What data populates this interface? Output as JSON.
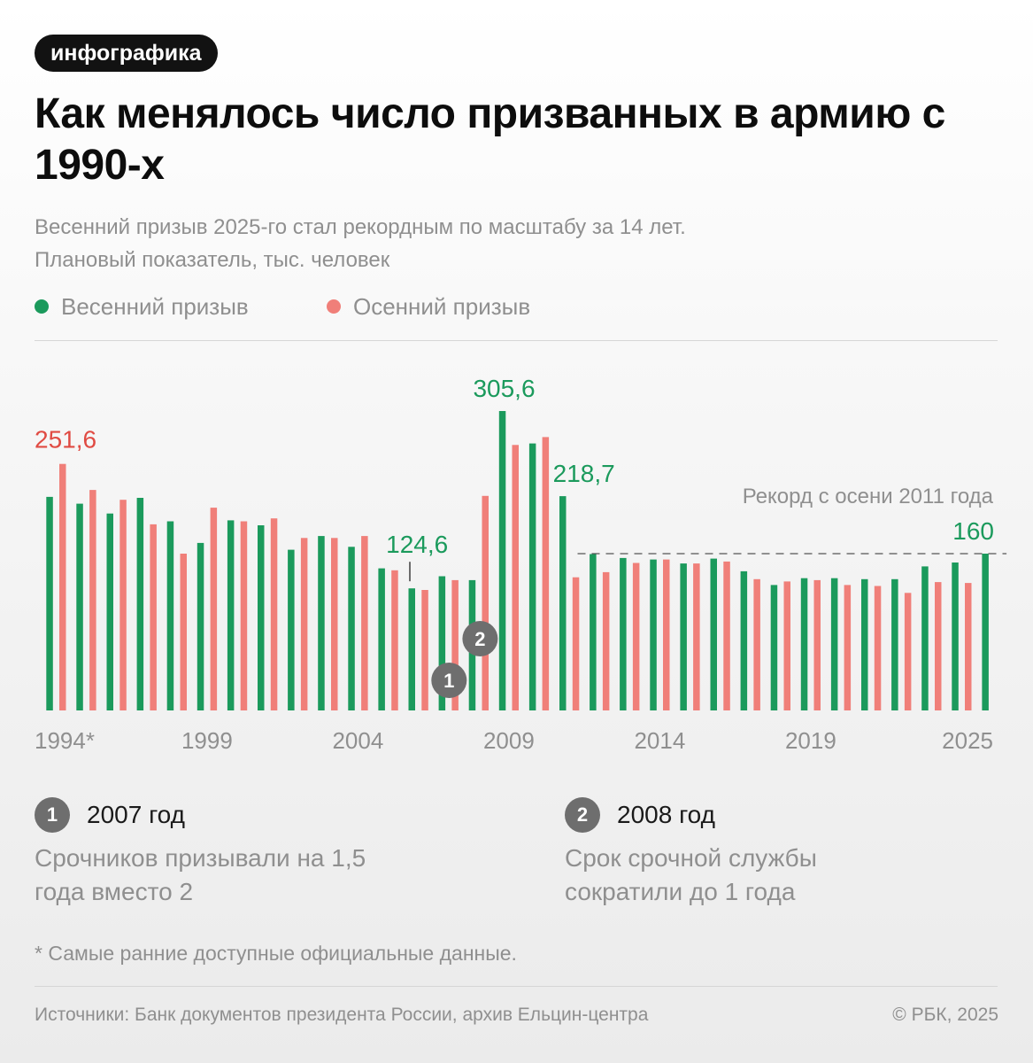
{
  "tag": "инфографика",
  "title": "Как менялось число призванных в армию с 1990-х",
  "subtitle": [
    "Весенний призыв 2025-го стал рекордным по масштабу за 14 лет.",
    "Плановый показатель, тыс. человек"
  ],
  "legend": {
    "spring": "Весенний призыв",
    "autumn": "Осенний призыв"
  },
  "colors": {
    "spring": "#1b9a5c",
    "autumn": "#f07f79",
    "spring_label": "#1b9a5c",
    "autumn_label": "#e04b43",
    "axis_text": "#8f8f8f",
    "badge": "#6e6e6e"
  },
  "chart_data": {
    "type": "bar",
    "title": "Как менялось число призванных в армию с 1990-х",
    "ylabel": "тыс. человек",
    "ylim": [
      0,
      310
    ],
    "grid": false,
    "legend_position": "top-left",
    "categories": [
      "1994",
      "1995",
      "1996",
      "1997",
      "1998",
      "1999",
      "2000",
      "2001",
      "2002",
      "2003",
      "2004",
      "2005",
      "2006",
      "2007",
      "2008",
      "2009",
      "2010",
      "2011",
      "2012",
      "2013",
      "2014",
      "2015",
      "2016",
      "2017",
      "2018",
      "2019",
      "2020",
      "2021",
      "2022",
      "2023",
      "2024",
      "2025"
    ],
    "series": [
      {
        "name": "Весенний призыв",
        "key": "spring",
        "values": [
          218,
          211,
          201,
          217,
          193,
          171,
          194,
          189,
          164,
          178,
          167,
          145,
          124.6,
          137,
          133,
          305.6,
          272.5,
          218.7,
          159.6,
          155.6,
          154.1,
          150,
          155,
          142,
          128,
          135,
          135,
          134,
          134,
          147,
          151,
          160
        ]
      },
      {
        "name": "Осенний призыв",
        "key": "autumn",
        "values": [
          251.6,
          225,
          215,
          190,
          160,
          207,
          193,
          196,
          176,
          176,
          178,
          143,
          123,
          133,
          219,
          271,
          279,
          135.85,
          141.15,
          150.5,
          154.1,
          150,
          152,
          134,
          131.6,
          133,
          128,
          127,
          120,
          131,
          130.1,
          null
        ]
      }
    ],
    "x_tick_labels": [
      {
        "category": "1994",
        "label": "1994*"
      },
      {
        "category": "1999",
        "label": "1999"
      },
      {
        "category": "2004",
        "label": "2004"
      },
      {
        "category": "2009",
        "label": "2009"
      },
      {
        "category": "2014",
        "label": "2014"
      },
      {
        "category": "2019",
        "label": "2019"
      },
      {
        "category": "2025",
        "label": "2025"
      }
    ],
    "data_labels": [
      {
        "category": "1994",
        "series": "autumn",
        "text": "251,6"
      },
      {
        "category": "2006",
        "series": "spring",
        "text": "124,6"
      },
      {
        "category": "2009",
        "series": "spring",
        "text": "305,6"
      },
      {
        "category": "2011",
        "series": "spring",
        "text": "218,7"
      },
      {
        "category": "2025",
        "series": "spring",
        "text": "160"
      }
    ],
    "reference_line": {
      "value": 160,
      "from_category": "2011",
      "to_category": "2025",
      "label": "Рекорд с осени 2011 года"
    },
    "markers": [
      {
        "id": "1",
        "category": "2007"
      },
      {
        "id": "2",
        "category": "2008"
      }
    ]
  },
  "notes": [
    {
      "badge": "1",
      "title": "2007 год",
      "text": "Срочников призывали на 1,5 года вместо 2"
    },
    {
      "badge": "2",
      "title": "2008 год",
      "text": "Срок срочной службы сократили до 1 года"
    }
  ],
  "footnote": "* Самые ранние доступные официальные данные.",
  "source": "Источники: Банк документов президента России, архив Ельцин-центра",
  "copyright": "© РБК, 2025"
}
